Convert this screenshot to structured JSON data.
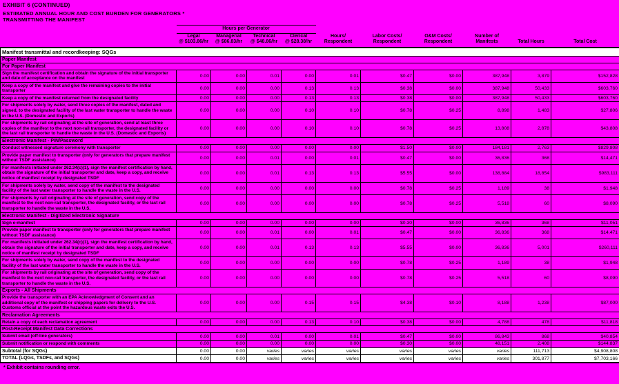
{
  "title": {
    "line1": "EXHIBIT 6 (CONTINUED)",
    "line2": "ESTIMATED ANNUAL HOUR AND COST BURDEN FOR GENERATORS *",
    "line3": "TRANSMITTING THE MANIFEST"
  },
  "table": {
    "group_header": "Hours per Generator",
    "columns": [
      {
        "label": "Legal",
        "sub": "@ $103.86/hr"
      },
      {
        "label": "Managerial",
        "sub": "@ $86.83/hr"
      },
      {
        "label": "Technical",
        "sub": "@ $48.86/hr"
      },
      {
        "label": "Clerical",
        "sub": "@ $28.38/hr"
      },
      {
        "label": "Hours/",
        "sub": "Respondent"
      },
      {
        "label": "Labor Costs/",
        "sub": "Respondent"
      },
      {
        "label": "O&M Costs/",
        "sub": "Respondent"
      },
      {
        "label": "Number of",
        "sub": "Manifests"
      },
      {
        "label": "Total Hours",
        "sub": ""
      },
      {
        "label": "Total Cost",
        "sub": ""
      }
    ],
    "rows": [
      {
        "type": "titlerow",
        "label": "Manifest transmittal and recordkeeping:  SQGs"
      },
      {
        "type": "section",
        "label": "Paper Manifest"
      },
      {
        "type": "section",
        "label": "For Paper Manifest"
      },
      {
        "type": "data",
        "desc": "Sign the manifest certification and obtain the signature of the initial transporter and date of acceptance on the manifest",
        "values": [
          "0.00",
          "0.00",
          "0.01",
          "0.00",
          "0.01",
          "$0.47",
          "$0.00",
          "387,948",
          "3,879",
          "$152,828"
        ]
      },
      {
        "type": "data",
        "desc": "Keep a copy of the manifest and give the remaining copies to the initial transporter",
        "values": [
          "0.00",
          "0.00",
          "0.00",
          "0.13",
          "0.13",
          "$0.38",
          "$0.00",
          "387,948",
          "50,433",
          "$603,760"
        ]
      },
      {
        "type": "data",
        "desc": "Keep a copy of the manifest returned from the designated facility",
        "values": [
          "0.00",
          "0.00",
          "0.00",
          "0.13",
          "0.13",
          "$0.38",
          "$0.00",
          "387,948",
          "50,433",
          "$603,760"
        ]
      },
      {
        "type": "data",
        "desc": "For shipments solely by water, send three copies of the manifest, dated and signed, to the designated facility of the last water transporter to handle the waste in the U.S. (Domestic and Exports)",
        "values": [
          "0.00",
          "0.00",
          "0.00",
          "0.10",
          "0.10",
          "$0.78",
          "$0.25",
          "8,898",
          "1,483",
          "$27,806"
        ]
      },
      {
        "type": "data",
        "desc": "For shipments by rail originating at the site of generation, send at least three copies of the manifest to the next non-rail transporter, the designated facility or the last rail transporter to handle the waste in the U.S. (Domestic and Exports)",
        "values": [
          "0.00",
          "0.00",
          "0.00",
          "0.10",
          "0.10",
          "$0.78",
          "$0.25",
          "13,808",
          "2,878",
          "$43,808"
        ]
      },
      {
        "type": "section",
        "label": "Electronic Manifest - PIN/Password"
      },
      {
        "type": "data",
        "desc": "Conduct witnessed signature ceremony with transporter",
        "values": [
          "0.00",
          "0.00",
          "0.00",
          "0.00",
          "0.00",
          "$1.50",
          "$0.00",
          "184,181",
          "2,763",
          "$829,808"
        ]
      },
      {
        "type": "data",
        "desc": "Provide paper manifest to transporter (only for generators that prepare manifest without TSDF assistance)",
        "values": [
          "0.00",
          "0.00",
          "0.01",
          "0.00",
          "0.01",
          "$0.47",
          "$0.00",
          "36,836",
          "368",
          "$14,471"
        ]
      },
      {
        "type": "data",
        "desc": "For manifests initiated under 262.34(c)(1), sign the manifest certification by hand, obtain the signature of the initial transporter and date, keep a copy, and receive notice of manifest receipt by designated TSDF",
        "values": [
          "0.00",
          "0.00",
          "0.01",
          "0.13",
          "0.13",
          "$5.55",
          "$0.00",
          "138,884",
          "18,854",
          "$983,111"
        ]
      },
      {
        "type": "data",
        "desc": "For shipments solely by water, send copy of the manifest to the designated facility of the last water transporter to handle the waste in the U.S.",
        "values": [
          "0.00",
          "0.00",
          "0.00",
          "0.00",
          "0.00",
          "$0.78",
          "$0.25",
          "1,189",
          "38",
          "$1,948"
        ]
      },
      {
        "type": "data",
        "desc": "For shipments by rail originating at the site of generation, send copy of the manifest to the next non-rail transporter, the designated facility, or the last rail transporter to handle the waste in the U.S.",
        "values": [
          "0.00",
          "0.00",
          "0.00",
          "0.00",
          "0.00",
          "$0.78",
          "$0.25",
          "5,518",
          "60",
          "$8,090"
        ]
      },
      {
        "type": "section",
        "label": "Electronic Manifest - Digitized Electronic Signature"
      },
      {
        "type": "data",
        "desc": "Sign e-manifest",
        "values": [
          "0.00",
          "0.00",
          "0.00",
          "0.00",
          "0.00",
          "$0.30",
          "$0.00",
          "36,836",
          "368",
          "$11,051"
        ]
      },
      {
        "type": "data",
        "desc": "Provide paper manifest to transporter (only for generators that prepare manifest without TSDF assistance)",
        "values": [
          "0.00",
          "0.00",
          "0.01",
          "0.00",
          "0.01",
          "$0.47",
          "$0.00",
          "36,836",
          "368",
          "$14,471"
        ]
      },
      {
        "type": "data",
        "desc": "For manifests initiated under 262.34(c)(1), sign the manifest certification by hand, obtain the signature of the initial transporter and date, keep a copy, and receive notice of manifest receipt by designated TSDF",
        "values": [
          "0.00",
          "0.00",
          "0.01",
          "0.13",
          "0.13",
          "$5.55",
          "$0.00",
          "36,836",
          "5,001",
          "$260,111"
        ]
      },
      {
        "type": "data",
        "desc": "For shipments solely by water, send copy of the manifest to the designated facility of the last water transporter to handle the waste in the U.S.",
        "values": [
          "0.00",
          "0.00",
          "0.00",
          "0.00",
          "0.00",
          "$0.78",
          "$0.25",
          "1,189",
          "38",
          "$1,948"
        ]
      },
      {
        "type": "data",
        "desc": "For shipments by rail originating at the site of generation, send copy of the manifest to the next non-rail transporter, the designated facility, or the last rail transporter to handle the waste in the U.S.",
        "values": [
          "0.00",
          "0.00",
          "0.00",
          "0.00",
          "0.00",
          "$0.78",
          "$0.25",
          "5,518",
          "60",
          "$8,090"
        ]
      },
      {
        "type": "section",
        "label": "Exports - All Shipments"
      },
      {
        "type": "data",
        "desc": "Provide the transporter with an EPA Acknowledgment of Consent and an additional copy of the manifest or shipping papers for delivery to the U.S. Customs official at the point the hazardous waste exits the U.S.",
        "values": [
          "0.00",
          "0.00",
          "0.00",
          "0.15",
          "0.15",
          "$4.38",
          "$0.10",
          "8,188",
          "1,238",
          "$87,000"
        ]
      },
      {
        "type": "section",
        "label": "Reclamation Agreements"
      },
      {
        "type": "data",
        "desc": "Retain a copy of each reclamation agreement",
        "values": [
          "0.00",
          "0.00",
          "0.00",
          "0.13",
          "0.10",
          "$0.38",
          "$0.00",
          "4,788",
          "478",
          "$11,818"
        ]
      },
      {
        "type": "section",
        "label": "Post-Receipt Manifest Data Corrections"
      },
      {
        "type": "data",
        "desc": "Submit email (off-line generators)",
        "values": [
          "0.00",
          "0.00",
          "0.01",
          "0.00",
          "0.01",
          "$0.47",
          "$0.00",
          "86,843",
          "868",
          "$40,854"
        ]
      },
      {
        "type": "data",
        "desc": "Submit notification or respond with comments",
        "values": [
          "0.00",
          "0.00",
          "0.00",
          "0.00",
          "0.00",
          "$0.30",
          "$0.00",
          "48,151",
          "2,408",
          "$144,837"
        ]
      },
      {
        "type": "summary",
        "desc": "Subtotal (for SQGs)",
        "values": [
          "0.00",
          "0.00",
          "varies",
          "varies",
          "varies",
          "varies",
          "varies",
          "varies",
          "111,713",
          "$4,908,808"
        ]
      },
      {
        "type": "summary",
        "desc": "TOTAL (LQGs, TSDFs, and SQGs)",
        "values": [
          "0.00",
          "0.00",
          "varies",
          "varies",
          "varies",
          "varies",
          "varies",
          "varies",
          "301,877",
          "$7,703,166"
        ]
      }
    ],
    "footnote": "* Exhibit contains rounding error."
  }
}
